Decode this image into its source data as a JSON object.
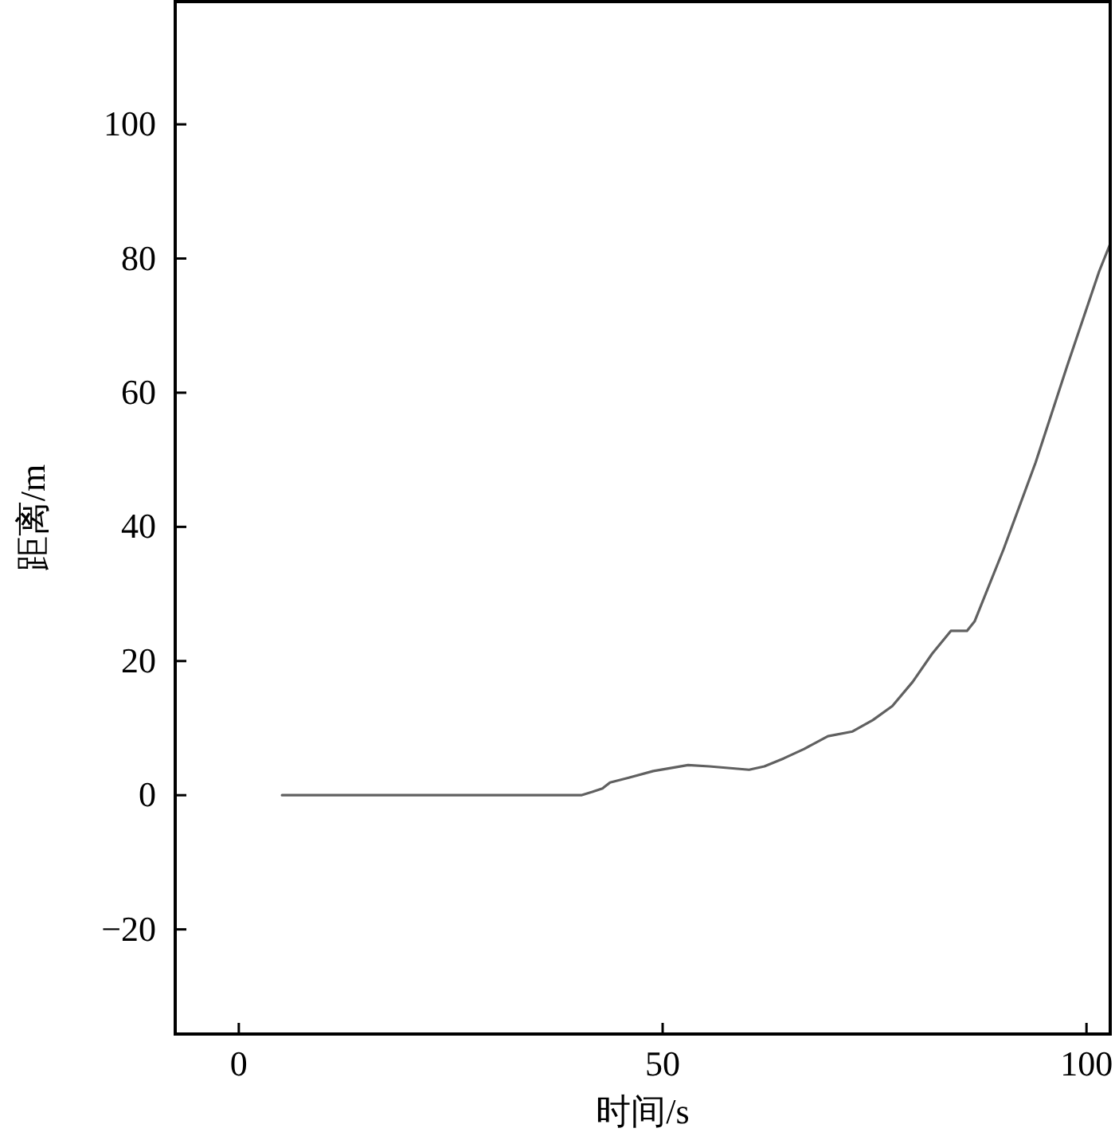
{
  "chart_data": {
    "type": "line",
    "xlabel": "时间/s",
    "ylabel": "距离/m",
    "xlim": [
      -7.5,
      102.8
    ],
    "ylim": [
      -35.6,
      118.3
    ],
    "xticks": [
      0,
      50,
      100
    ],
    "yticks": [
      -20,
      0,
      20,
      40,
      60,
      80,
      100
    ],
    "grid": false,
    "marker": "none",
    "line_style": "solid",
    "series": [
      {
        "color": "#606060",
        "x": [
          5.1,
          40.4,
          41.7,
          42.9,
          43.8,
          46,
          48.9,
          53,
          55.5,
          60.2,
          62,
          64.3,
          66.7,
          69.5,
          72.4,
          74.8,
          77.1,
          79.5,
          81.8,
          84,
          85.9,
          86.8,
          90.2,
          94,
          97.7,
          101.5,
          102.8
        ],
        "values": [
          0,
          0,
          0.5,
          1,
          1.9,
          2.6,
          3.6,
          4.5,
          4.3,
          3.8,
          4.3,
          5.5,
          6.9,
          8.8,
          9.5,
          11.2,
          13.3,
          16.9,
          21.1,
          24.5,
          24.5,
          25.9,
          36.6,
          49.6,
          63.9,
          78.1,
          82.2
        ]
      }
    ]
  }
}
